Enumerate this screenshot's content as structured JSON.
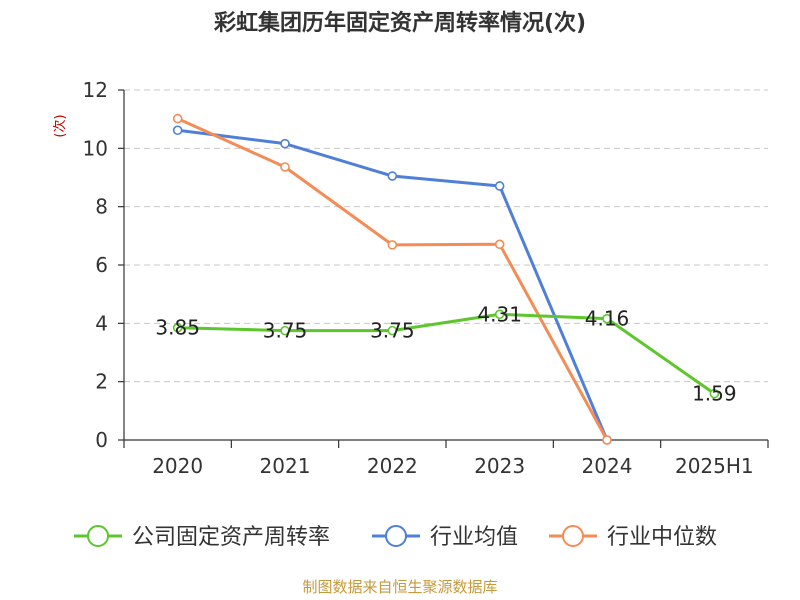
{
  "chart_data": {
    "type": "line",
    "title": "彩虹集团历年固定资产周转率情况(次)",
    "ylabel": "(次)",
    "categories": [
      "2020",
      "2021",
      "2022",
      "2023",
      "2024",
      "2025H1"
    ],
    "ylim": [
      0,
      12
    ],
    "yticks": [
      0,
      2,
      4,
      6,
      8,
      10,
      12
    ],
    "grid": true,
    "legend_position": "bottom",
    "series": [
      {
        "name": "公司固定资产周转率",
        "color": "#5cc62c",
        "values": [
          3.85,
          3.75,
          3.75,
          4.31,
          4.16,
          1.59
        ],
        "labels": [
          "3.85",
          "3.75",
          "3.75",
          "4.31",
          "4.16",
          "1.59"
        ]
      },
      {
        "name": "行业均值",
        "color": "#4f7fd6",
        "values": [
          10.62,
          10.16,
          9.05,
          8.71,
          0.0,
          null
        ],
        "labels": []
      },
      {
        "name": "行业中位数",
        "color": "#f48c56",
        "values": [
          11.02,
          9.36,
          6.69,
          6.71,
          0.0,
          null
        ],
        "labels": []
      }
    ]
  },
  "source": "制图数据来自恒生聚源数据库",
  "colors": {
    "text": "#333333",
    "ylabel": "#c00000",
    "source": "#c59a3c",
    "grid": "#c8c8c8"
  }
}
